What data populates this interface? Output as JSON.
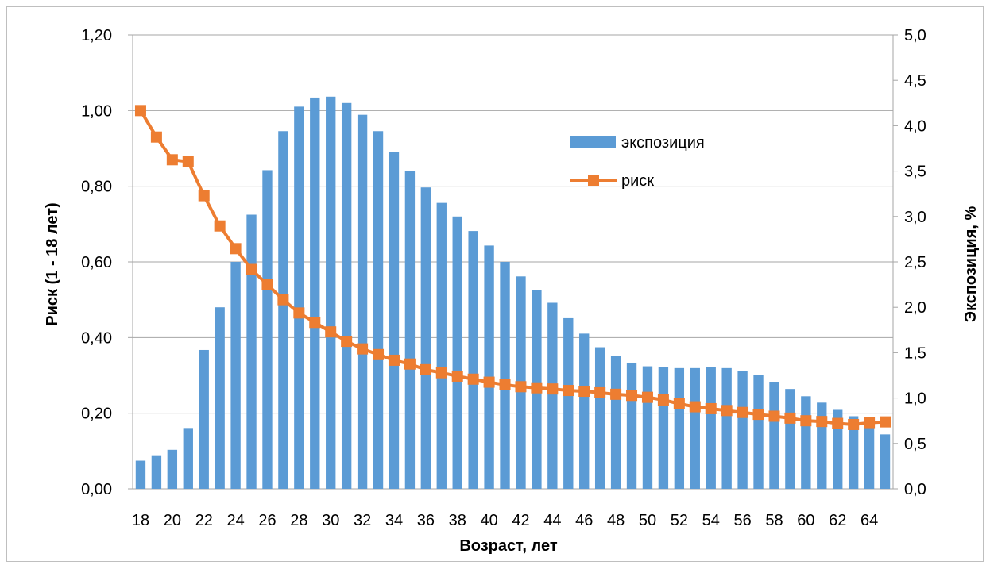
{
  "chart_data": {
    "type": "bar+line",
    "x_axis": {
      "label": "Возраст, лет",
      "categories": [
        18,
        19,
        20,
        21,
        22,
        23,
        24,
        25,
        26,
        27,
        28,
        29,
        30,
        31,
        32,
        33,
        34,
        35,
        36,
        37,
        38,
        39,
        40,
        41,
        42,
        43,
        44,
        45,
        46,
        47,
        48,
        49,
        50,
        51,
        52,
        53,
        54,
        55,
        56,
        57,
        58,
        59,
        60,
        61,
        62,
        63,
        64,
        65
      ],
      "tick_labels": [
        "18",
        "20",
        "22",
        "24",
        "26",
        "28",
        "30",
        "32",
        "34",
        "36",
        "38",
        "40",
        "42",
        "44",
        "46",
        "48",
        "50",
        "52",
        "54",
        "56",
        "58",
        "60",
        "62",
        "64"
      ]
    },
    "y_left": {
      "label": "Риск (1 - 18 лет)",
      "range": [
        0,
        1.2
      ],
      "tick_labels": [
        "0,00",
        "0,20",
        "0,40",
        "0,60",
        "0,80",
        "1,00",
        "1,20"
      ]
    },
    "y_right": {
      "label": "Экспозиция, %",
      "range": [
        0,
        5
      ],
      "tick_labels": [
        "0,0",
        "0,5",
        "1,0",
        "1,5",
        "2,0",
        "2,5",
        "3,0",
        "3,5",
        "4,0",
        "4,5",
        "5,0"
      ]
    },
    "grid": true,
    "legend_position": "upper-right inside plot",
    "series": [
      {
        "name": "экспозиция",
        "kind": "bar",
        "axis": "right",
        "color": "#5b9bd5",
        "values": [
          0.31,
          0.37,
          0.43,
          0.67,
          1.53,
          2.0,
          2.5,
          3.02,
          3.51,
          3.94,
          4.21,
          4.31,
          4.32,
          4.25,
          4.12,
          3.94,
          3.71,
          3.5,
          3.32,
          3.15,
          3.0,
          2.84,
          2.68,
          2.5,
          2.34,
          2.19,
          2.05,
          1.88,
          1.71,
          1.56,
          1.46,
          1.39,
          1.35,
          1.34,
          1.33,
          1.33,
          1.34,
          1.33,
          1.3,
          1.25,
          1.18,
          1.1,
          1.02,
          0.95,
          0.87,
          0.8,
          0.73,
          0.6
        ]
      },
      {
        "name": "риск",
        "kind": "line",
        "axis": "left",
        "color": "#ed7d31",
        "marker": "square",
        "values": [
          1.0,
          0.93,
          0.87,
          0.865,
          0.775,
          0.695,
          0.635,
          0.58,
          0.54,
          0.5,
          0.465,
          0.44,
          0.415,
          0.39,
          0.37,
          0.355,
          0.34,
          0.33,
          0.315,
          0.307,
          0.298,
          0.29,
          0.282,
          0.275,
          0.27,
          0.267,
          0.264,
          0.26,
          0.258,
          0.254,
          0.25,
          0.247,
          0.242,
          0.235,
          0.225,
          0.217,
          0.212,
          0.207,
          0.202,
          0.197,
          0.192,
          0.187,
          0.18,
          0.178,
          0.173,
          0.17,
          0.175,
          0.177
        ]
      }
    ]
  }
}
